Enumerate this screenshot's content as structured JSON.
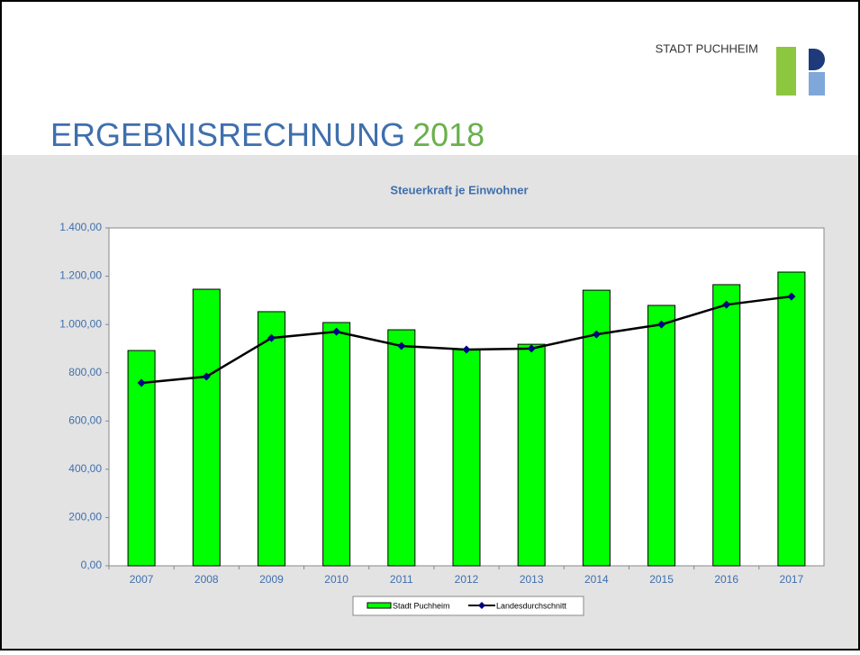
{
  "header": {
    "title": "ERGEBNISRECHNUNG",
    "year": "2018",
    "logo": "STADT PUCHHEIM"
  },
  "chart_data": {
    "type": "bar-line",
    "title": "Steuerkraft je Einwohner",
    "categories": [
      "2007",
      "2008",
      "2009",
      "2010",
      "2011",
      "2012",
      "2013",
      "2014",
      "2015",
      "2016",
      "2017"
    ],
    "series": [
      {
        "name": "Stadt Puchheim",
        "type": "bar",
        "color": "#00ff00",
        "values": [
          892,
          1146,
          1053,
          1008,
          978,
          896,
          918,
          1142,
          1079,
          1165,
          1217
        ]
      },
      {
        "name": "Landesdurchschnitt",
        "type": "line",
        "color": "#000000",
        "marker_color": "#000080",
        "values": [
          758,
          784,
          944,
          970,
          911,
          896,
          900,
          959,
          1000,
          1082,
          1116
        ]
      }
    ],
    "ylim": [
      0,
      1400
    ],
    "yticks": [
      {
        "value": 0,
        "label": "0,00"
      },
      {
        "value": 200,
        "label": "200,00"
      },
      {
        "value": 400,
        "label": "400,00"
      },
      {
        "value": 600,
        "label": "600,00"
      },
      {
        "value": 800,
        "label": "800,00"
      },
      {
        "value": 1000,
        "label": "1.000,00"
      },
      {
        "value": 1200,
        "label": "1.200,00"
      },
      {
        "value": 1400,
        "label": "1.400,00"
      }
    ],
    "grid": false,
    "legend": "bottom"
  }
}
